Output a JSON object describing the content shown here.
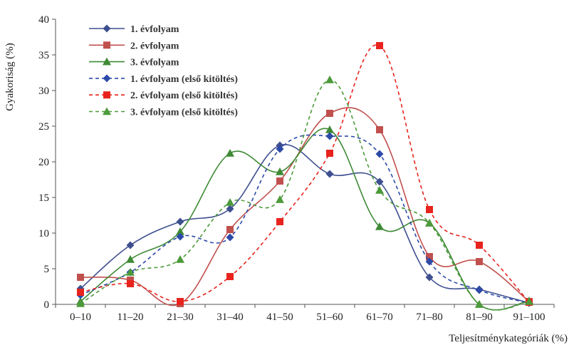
{
  "chart_data": {
    "type": "line",
    "categories": [
      "0–10",
      "11–20",
      "21–30",
      "31–40",
      "41–50",
      "51–60",
      "61–70",
      "71–80",
      "81–90",
      "91–100"
    ],
    "xlabel": "Teljesítménykategóriák (%)",
    "ylabel": "Gyakoriság (%)",
    "ylim": [
      0,
      40
    ],
    "yticks": [
      0,
      5,
      10,
      15,
      20,
      25,
      30,
      35,
      40
    ],
    "grid": false,
    "legend_position": "top-left",
    "smooth": true,
    "series": [
      {
        "name": "1. évfolyam",
        "color": "#3d4f8f",
        "dash": "solid",
        "marker": "diamond",
        "values": [
          2.2,
          8.3,
          11.6,
          13.4,
          22.3,
          18.3,
          17.2,
          3.8,
          2.1,
          0.2
        ]
      },
      {
        "name": "2. évfolyam",
        "color": "#c0504d",
        "dash": "solid",
        "marker": "square",
        "values": [
          3.8,
          3.4,
          0.1,
          10.5,
          17.3,
          26.8,
          24.5,
          6.7,
          6.0,
          0.4
        ]
      },
      {
        "name": "3. évfolyam",
        "color": "#3e8a35",
        "dash": "solid",
        "marker": "triangle",
        "values": [
          0.4,
          6.3,
          10.2,
          21.2,
          18.6,
          24.5,
          10.9,
          11.4,
          0.0,
          0.5
        ]
      },
      {
        "name": "1. évfolyam (első kitöltés)",
        "color": "#2c4aa8",
        "dash": "dashed",
        "marker": "diamond",
        "values": [
          1.3,
          4.5,
          9.5,
          9.4,
          21.8,
          23.6,
          21.1,
          6.0,
          2.0,
          0.2
        ]
      },
      {
        "name": "2. évfolyam (első kitöltés)",
        "color": "#e8231d",
        "dash": "dashed",
        "marker": "square",
        "values": [
          1.7,
          2.9,
          0.4,
          3.9,
          11.6,
          21.2,
          36.3,
          13.3,
          8.3,
          0.3
        ]
      },
      {
        "name": "3. évfolyam (első kitöltés)",
        "color": "#4c9a3a",
        "dash": "dashed",
        "marker": "triangle",
        "values": [
          0.1,
          4.5,
          6.3,
          14.3,
          14.7,
          31.5,
          16.0,
          11.4,
          0.0,
          0.4
        ]
      }
    ]
  }
}
